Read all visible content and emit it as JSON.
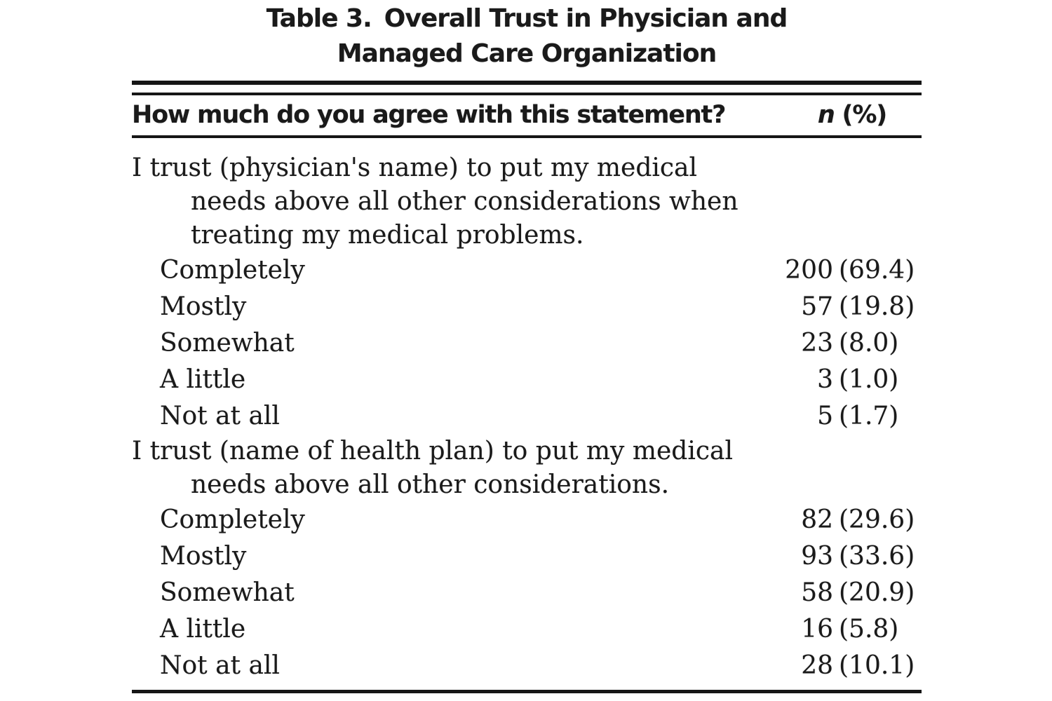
{
  "page": {
    "background_color": "#ffffff",
    "text_color": "#1a1a1a",
    "rule_color": "#161616"
  },
  "title": {
    "number_label": "Table 3.",
    "line1_rest": "Overall Trust in Physician and",
    "line2": "Managed Care Organization"
  },
  "header": {
    "question_column": "How much do you agree with this statement?",
    "n_symbol": "n",
    "percent_label": "(%)"
  },
  "sections": [
    {
      "statement_lines": [
        "I trust (physician's name) to put my medical",
        "needs above all other considerations when",
        "treating my medical problems."
      ],
      "rows": [
        {
          "label": "Completely",
          "n": "200",
          "pct": "(69.4)"
        },
        {
          "label": "Mostly",
          "n": "57",
          "pct": "(19.8)"
        },
        {
          "label": "Somewhat",
          "n": "23",
          "pct": "(8.0)"
        },
        {
          "label": "A little",
          "n": "3",
          "pct": "(1.0)"
        },
        {
          "label": "Not at all",
          "n": "5",
          "pct": "(1.7)"
        }
      ]
    },
    {
      "statement_lines": [
        "I trust (name of health plan) to put my medical",
        "needs above all other considerations."
      ],
      "rows": [
        {
          "label": "Completely",
          "n": "82",
          "pct": "(29.6)"
        },
        {
          "label": "Mostly",
          "n": "93",
          "pct": "(33.6)"
        },
        {
          "label": "Somewhat",
          "n": "58",
          "pct": "(20.9)"
        },
        {
          "label": "A little",
          "n": "16",
          "pct": "(5.8)"
        },
        {
          "label": "Not at all",
          "n": "28",
          "pct": "(10.1)"
        }
      ]
    }
  ]
}
